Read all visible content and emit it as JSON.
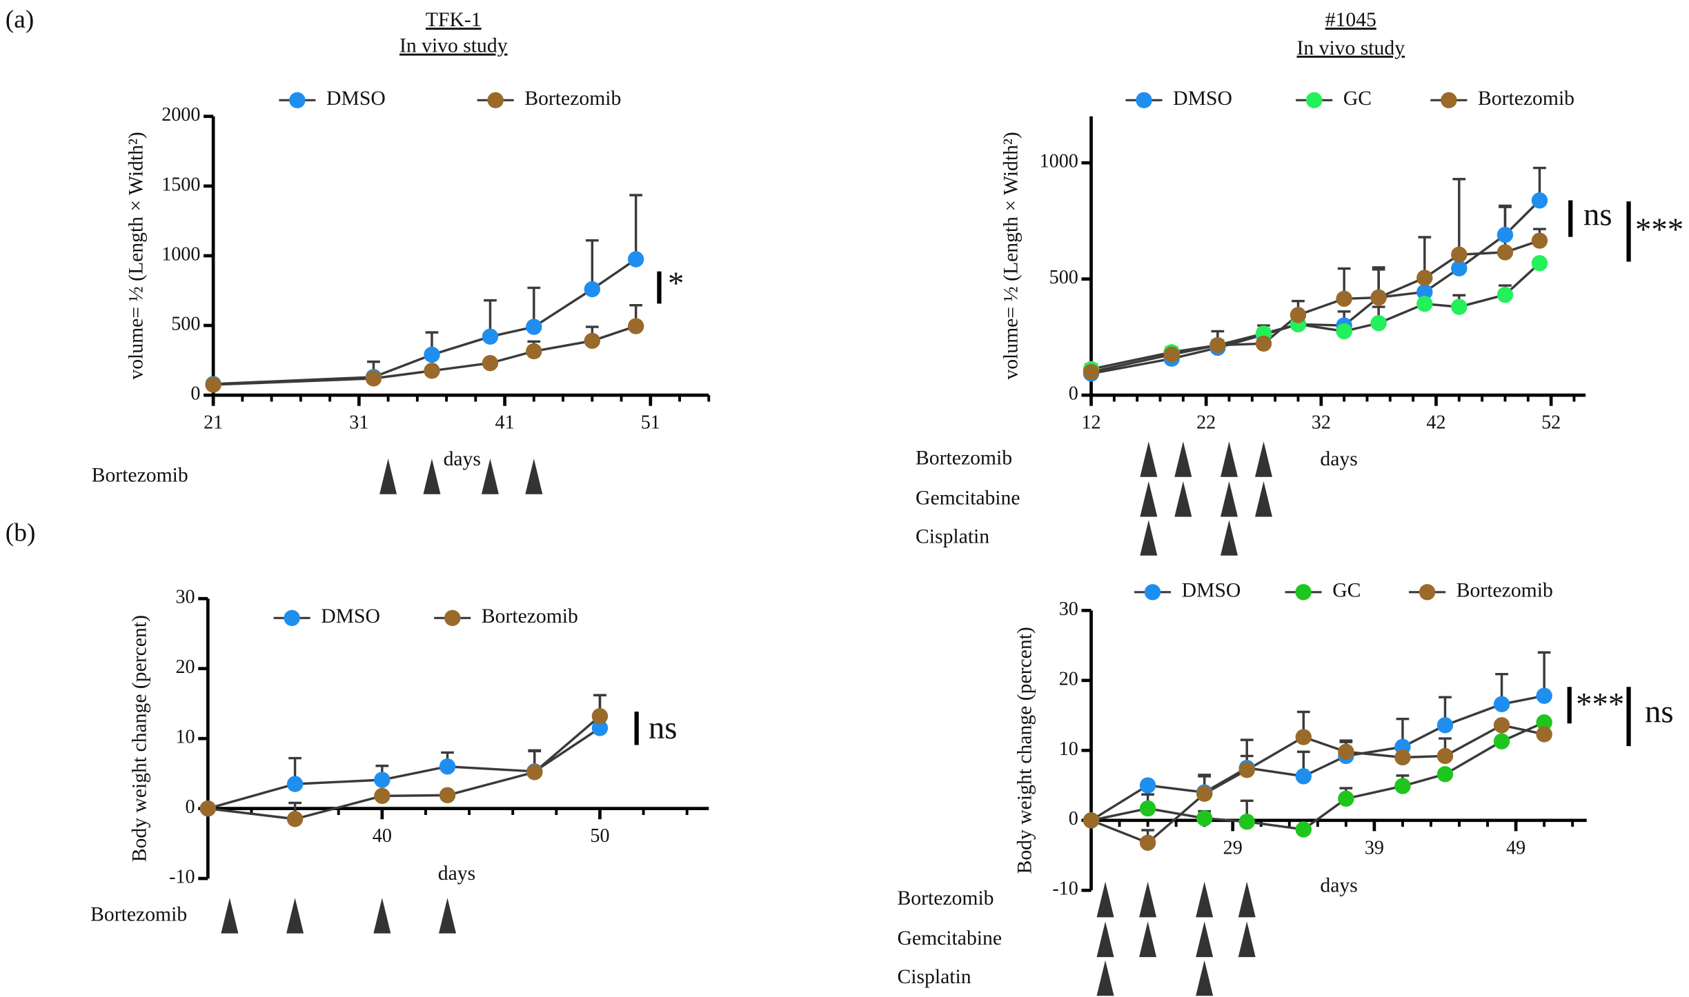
{
  "panels": [
    "(a)",
    "(b)"
  ],
  "chart_data": [
    {
      "type": "line",
      "title": [
        "TFK-1",
        "In vivo study"
      ],
      "x_label": "days",
      "y_label": "volume= ½ (Length × Width²)",
      "x": [
        21,
        32,
        36,
        40,
        43,
        47,
        50
      ],
      "series": [
        {
          "name": "DMSO",
          "color": "#1e8fef",
          "values": [
            80,
            130,
            290,
            420,
            490,
            760,
            975
          ],
          "errors": [
            0,
            110,
            160,
            260,
            280,
            350,
            460
          ]
        },
        {
          "name": "Bortezomib",
          "color": "#9a6a2a",
          "values": [
            75,
            120,
            175,
            230,
            315,
            390,
            495
          ],
          "errors": [
            0,
            0,
            0,
            0,
            70,
            100,
            150
          ]
        }
      ],
      "xlim": [
        21,
        55
      ],
      "xticks": [
        21,
        31,
        41,
        51
      ],
      "xminor_step": 2,
      "ylim": [
        0,
        2000
      ],
      "yticks": [
        0,
        500,
        1000,
        1500,
        2000
      ],
      "treatments": [
        {
          "name": "Bortezomib",
          "days": [
            33,
            36,
            40,
            43
          ]
        }
      ],
      "significance": [
        {
          "label": "*"
        }
      ]
    },
    {
      "type": "line",
      "title": [
        "#1045",
        "In vivo study"
      ],
      "x_label": "days",
      "y_label": "volume= ½ (Length × Width²)",
      "x": [
        12,
        19,
        23,
        27,
        30,
        34,
        37,
        41,
        44,
        48,
        51
      ],
      "series": [
        {
          "name": "DMSO",
          "color": "#1e8fef",
          "values": [
            93,
            157,
            204,
            260,
            305,
            300,
            421,
            444,
            546,
            690,
            838
          ],
          "errors": [
            20,
            30,
            20,
            40,
            0,
            60,
            120,
            0,
            0,
            120,
            140
          ]
        },
        {
          "name": "GC",
          "color": "#23f05a",
          "values": [
            112,
            185,
            215,
            265,
            305,
            275,
            310,
            393,
            380,
            432,
            568
          ],
          "errors": [
            20,
            20,
            20,
            20,
            0,
            0,
            70,
            0,
            50,
            40,
            0
          ]
        },
        {
          "name": "Bortezomib",
          "color": "#9a6a2a",
          "values": [
            100,
            175,
            215,
            222,
            345,
            415,
            420,
            505,
            605,
            615,
            665
          ],
          "errors": [
            0,
            0,
            60,
            50,
            60,
            130,
            130,
            175,
            325,
            200,
            50
          ]
        }
      ],
      "xlim": [
        12,
        55
      ],
      "xticks": [
        12,
        22,
        32,
        42,
        52
      ],
      "xminor_step": 2,
      "ylim": [
        0,
        1200
      ],
      "yticks": [
        0,
        500,
        1000
      ],
      "treatments": [
        {
          "name": "Bortezomib",
          "days": [
            17,
            20,
            24,
            27
          ]
        },
        {
          "name": "Gemcitabine",
          "days": [
            17,
            20,
            24,
            27
          ]
        },
        {
          "name": "Cisplatin",
          "days": [
            17,
            24
          ]
        }
      ],
      "significance": [
        {
          "label": "ns"
        },
        {
          "label": "***"
        }
      ]
    },
    {
      "type": "line",
      "x_label": "days",
      "y_label": "Body weight change (percent)",
      "x": [
        32,
        36,
        40,
        43,
        47,
        50
      ],
      "series": [
        {
          "name": "DMSO",
          "color": "#1e8fef",
          "values": [
            0,
            3.5,
            4.1,
            6,
            5.3,
            11.5
          ],
          "errors": [
            0,
            3.7,
            2,
            2,
            3,
            4.7
          ]
        },
        {
          "name": "Bortezomib",
          "color": "#9a6a2a",
          "values": [
            0,
            -1.5,
            1.8,
            1.9,
            5.2,
            13.2
          ],
          "errors": [
            0,
            2.3,
            0,
            0,
            3,
            3
          ]
        }
      ],
      "xlim": [
        32,
        55
      ],
      "xticks": [
        40,
        50
      ],
      "xminor_step": 2,
      "ylim": [
        -10,
        30
      ],
      "yticks": [
        -10,
        0,
        10,
        20,
        30
      ],
      "treatments": [
        {
          "name": "Bortezomib",
          "days": [
            33,
            36,
            40,
            43
          ]
        }
      ],
      "significance": [
        {
          "label": "ns"
        }
      ]
    },
    {
      "type": "line",
      "x_label": "days",
      "y_label": "Body weight change (percent)",
      "x": [
        19,
        23,
        27,
        30,
        34,
        37,
        41,
        44,
        48,
        51
      ],
      "series": [
        {
          "name": "DMSO",
          "color": "#1e8fef",
          "values": [
            0,
            5,
            4,
            7.5,
            6.3,
            9.2,
            10.5,
            13.6,
            16.6,
            17.8
          ],
          "errors": [
            0,
            0,
            2.5,
            4,
            3.5,
            2,
            4,
            4,
            4.3,
            6.2
          ]
        },
        {
          "name": "GC",
          "color": "#1fc51f",
          "values": [
            0,
            1.7,
            0.3,
            -0.2,
            -1.3,
            3.1,
            4.9,
            6.6,
            11.3,
            14
          ],
          "errors": [
            0,
            2,
            1,
            3,
            0,
            1.5,
            1.5,
            0,
            0,
            0
          ]
        },
        {
          "name": "Bortezomib",
          "color": "#9a6a2a",
          "values": [
            0,
            -3.2,
            3.8,
            7.2,
            11.9,
            9.8,
            9,
            9.2,
            13.6,
            12.3
          ],
          "errors": [
            0,
            1.8,
            2.5,
            2,
            3.6,
            1.6,
            0,
            2.5,
            0,
            0
          ]
        }
      ],
      "xlim": [
        19,
        54
      ],
      "xticks": [
        29,
        39,
        49
      ],
      "xminor_step": 2,
      "ylim": [
        -10,
        30
      ],
      "yticks": [
        -10,
        0,
        10,
        20,
        30
      ],
      "treatments": [
        {
          "name": "Bortezomib",
          "days": [
            20,
            23,
            27,
            30
          ]
        },
        {
          "name": "Gemcitabine",
          "days": [
            20,
            23,
            27,
            30
          ]
        },
        {
          "name": "Cisplatin",
          "days": [
            20,
            27
          ]
        }
      ],
      "significance": [
        {
          "label": "***"
        },
        {
          "label": "ns"
        }
      ]
    }
  ]
}
